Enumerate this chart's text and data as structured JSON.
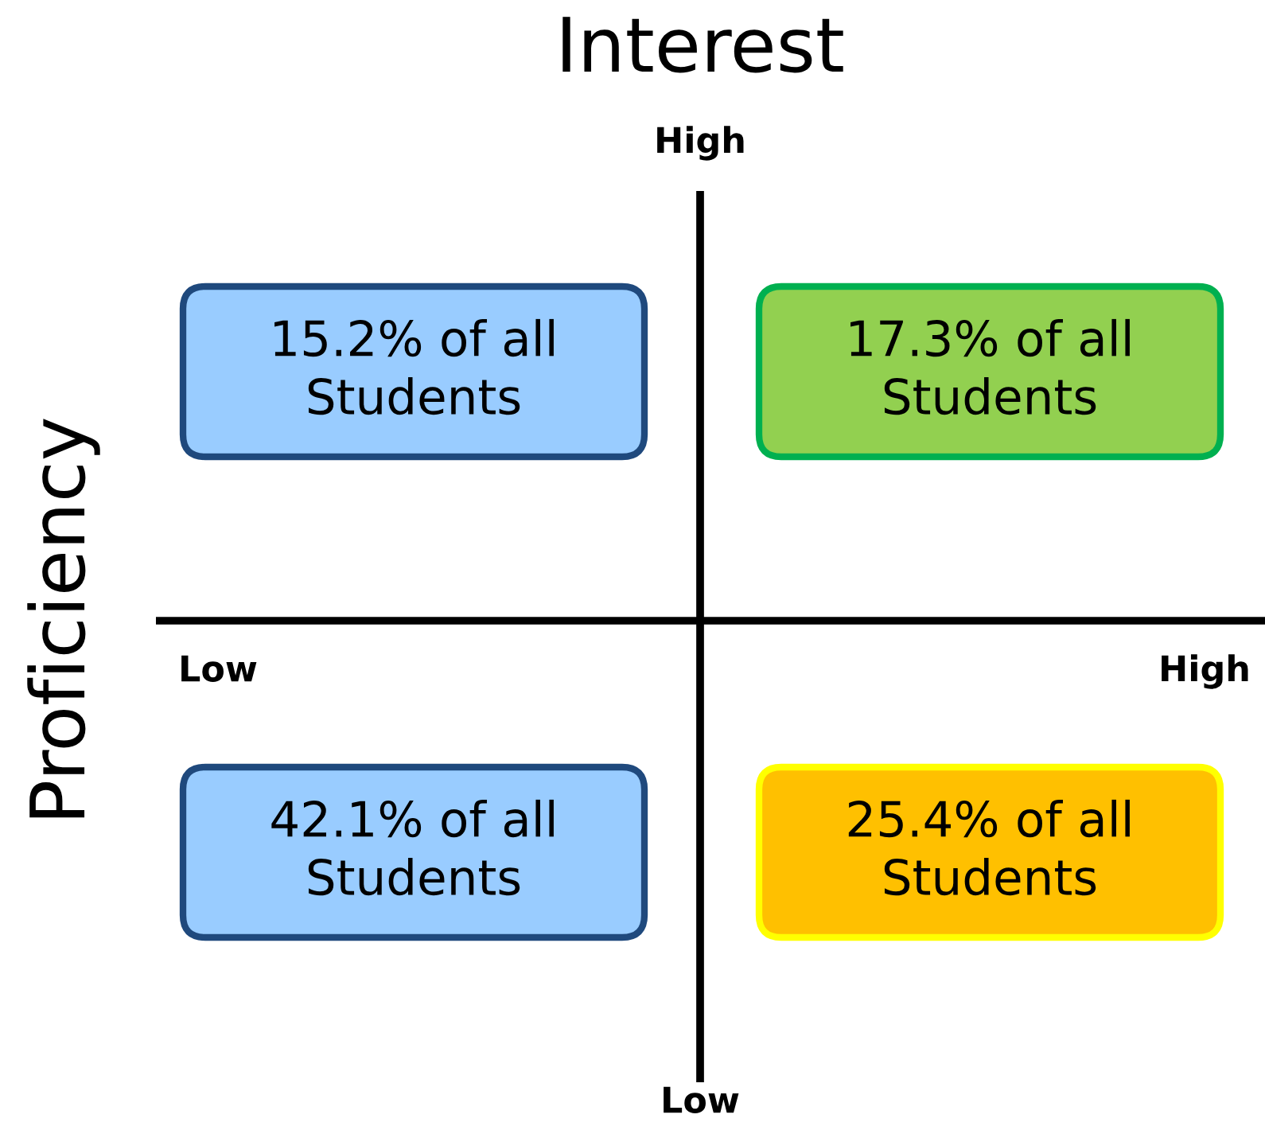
{
  "chart_data": {
    "type": "other",
    "title": "Interest",
    "ylabel": "Proficiency",
    "categories": [
      "Low",
      "High"
    ],
    "annotations": [
      "High",
      "Low"
    ],
    "series": [
      {
        "values": [
          15.2,
          17.3
        ],
        "value_labels": [
          "15.2% of all Students",
          "17.3% of all Students"
        ],
        "colors": [
          "#99ccff",
          "#92d050"
        ]
      },
      {
        "values": [
          42.1,
          25.4
        ],
        "value_labels": [
          "42.1% of all Students",
          "25.4% of all Students"
        ],
        "colors": [
          "#99ccff",
          "#ffc000"
        ]
      }
    ]
  }
}
